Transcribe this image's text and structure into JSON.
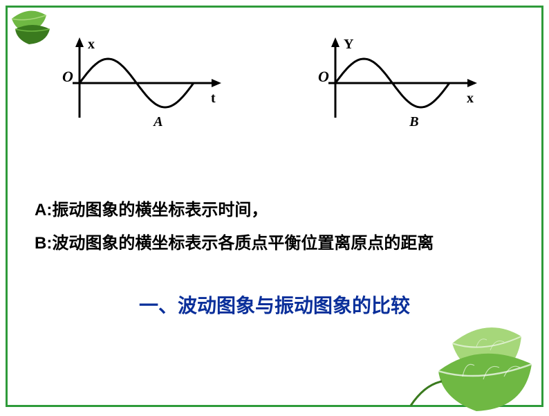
{
  "frame": {
    "color": "#2e9b3a"
  },
  "text": {
    "color": "#000000",
    "line_a_label": "A:",
    "line_a_text": "振动图象的横坐标表示时间，",
    "line_b_label": "B:",
    "line_b_text": "波动图象的横坐标表示各质点平衡位置离原点的距离"
  },
  "heading": {
    "text": "一、波动图象与振动图象的比较",
    "color": "#0a2f9a"
  },
  "chart_a": {
    "type": "line",
    "y_label": "x",
    "x_label": "t",
    "figure_label": "A",
    "origin_label": "O",
    "origin_label_style": "italic",
    "stroke_color": "#000000",
    "stroke_width": 3,
    "amplitude": 35,
    "cycles": 1,
    "axis_width": 240,
    "axis_height": 120,
    "font_style_labels": "italic"
  },
  "chart_b": {
    "type": "line",
    "y_label": "Y",
    "x_label": "x",
    "figure_label": "B",
    "origin_label": "O",
    "origin_label_style": "italic",
    "stroke_color": "#000000",
    "stroke_width": 3,
    "amplitude": 35,
    "cycles": 1,
    "axis_width": 240,
    "axis_height": 120,
    "font_style_labels": "italic"
  },
  "leaves": {
    "color_main": "#6fb843",
    "color_dark": "#3a7a1e",
    "color_light": "#a6d77a"
  }
}
